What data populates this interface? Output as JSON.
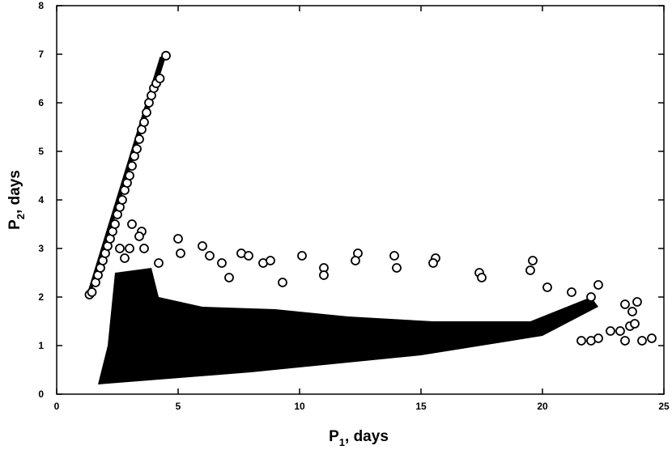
{
  "chart_data": {
    "type": "scatter",
    "title": "",
    "xlabel": {
      "base": "P",
      "sub": "1",
      "rest": ", days"
    },
    "ylabel": {
      "base": "P",
      "sub": "2",
      "rest": ", days"
    },
    "xlim": [
      0,
      25
    ],
    "ylim": [
      0,
      8
    ],
    "x_ticks": [
      0,
      5,
      10,
      15,
      20,
      25
    ],
    "y_ticks": [
      0,
      1,
      2,
      3,
      4,
      5,
      6,
      7,
      8
    ],
    "marker": "open-circle",
    "marker_color": "#000000",
    "grid": false,
    "legend": "none",
    "series": [
      {
        "values_xy": [
          [
            1.35,
            2.05
          ],
          [
            1.45,
            2.1
          ],
          [
            1.6,
            2.3
          ],
          [
            1.7,
            2.45
          ],
          [
            1.8,
            2.6
          ],
          [
            1.9,
            2.75
          ],
          [
            2.0,
            2.9
          ],
          [
            2.1,
            3.05
          ],
          [
            2.2,
            3.2
          ],
          [
            2.3,
            3.35
          ],
          [
            2.4,
            3.5
          ],
          [
            2.5,
            3.7
          ],
          [
            2.6,
            3.85
          ],
          [
            2.7,
            4.0
          ],
          [
            2.8,
            4.2
          ],
          [
            2.9,
            4.35
          ],
          [
            3.0,
            4.5
          ],
          [
            3.1,
            4.7
          ],
          [
            3.2,
            4.9
          ],
          [
            3.3,
            5.05
          ],
          [
            3.4,
            5.25
          ],
          [
            3.5,
            5.45
          ],
          [
            3.6,
            5.6
          ],
          [
            3.7,
            5.8
          ],
          [
            3.8,
            6.0
          ],
          [
            3.9,
            6.15
          ],
          [
            4.0,
            6.3
          ],
          [
            4.1,
            6.4
          ],
          [
            4.25,
            6.5
          ],
          [
            4.5,
            6.97
          ],
          [
            3.1,
            3.5
          ],
          [
            3.5,
            3.35
          ],
          [
            3.4,
            3.25
          ],
          [
            3.0,
            3.0
          ],
          [
            2.6,
            3.0
          ],
          [
            2.8,
            2.8
          ],
          [
            3.6,
            3.0
          ],
          [
            4.2,
            2.7
          ],
          [
            5.0,
            3.2
          ],
          [
            5.1,
            2.9
          ],
          [
            6.0,
            3.05
          ],
          [
            6.3,
            2.85
          ],
          [
            6.8,
            2.7
          ],
          [
            7.6,
            2.9
          ],
          [
            7.9,
            2.85
          ],
          [
            8.5,
            2.7
          ],
          [
            8.8,
            2.75
          ],
          [
            10.1,
            2.85
          ],
          [
            11.0,
            2.6
          ],
          [
            12.4,
            2.9
          ],
          [
            12.3,
            2.75
          ],
          [
            13.9,
            2.85
          ],
          [
            14.0,
            2.6
          ],
          [
            15.6,
            2.8
          ],
          [
            15.5,
            2.7
          ],
          [
            17.4,
            2.5
          ],
          [
            17.5,
            2.4
          ],
          [
            19.6,
            2.75
          ],
          [
            19.5,
            2.55
          ],
          [
            20.2,
            2.2
          ],
          [
            21.2,
            2.1
          ],
          [
            22.3,
            2.25
          ],
          [
            22.0,
            2.0
          ],
          [
            11.0,
            2.45
          ],
          [
            9.3,
            2.3
          ],
          [
            7.1,
            2.4
          ],
          [
            21.6,
            1.1
          ],
          [
            22.0,
            1.1
          ],
          [
            22.3,
            1.15
          ],
          [
            22.8,
            1.3
          ],
          [
            23.2,
            1.3
          ],
          [
            23.4,
            1.1
          ],
          [
            23.6,
            1.4
          ],
          [
            23.8,
            1.45
          ],
          [
            23.4,
            1.85
          ],
          [
            23.9,
            1.9
          ],
          [
            24.1,
            1.1
          ],
          [
            24.5,
            1.15
          ],
          [
            23.7,
            1.7
          ]
        ]
      }
    ]
  }
}
